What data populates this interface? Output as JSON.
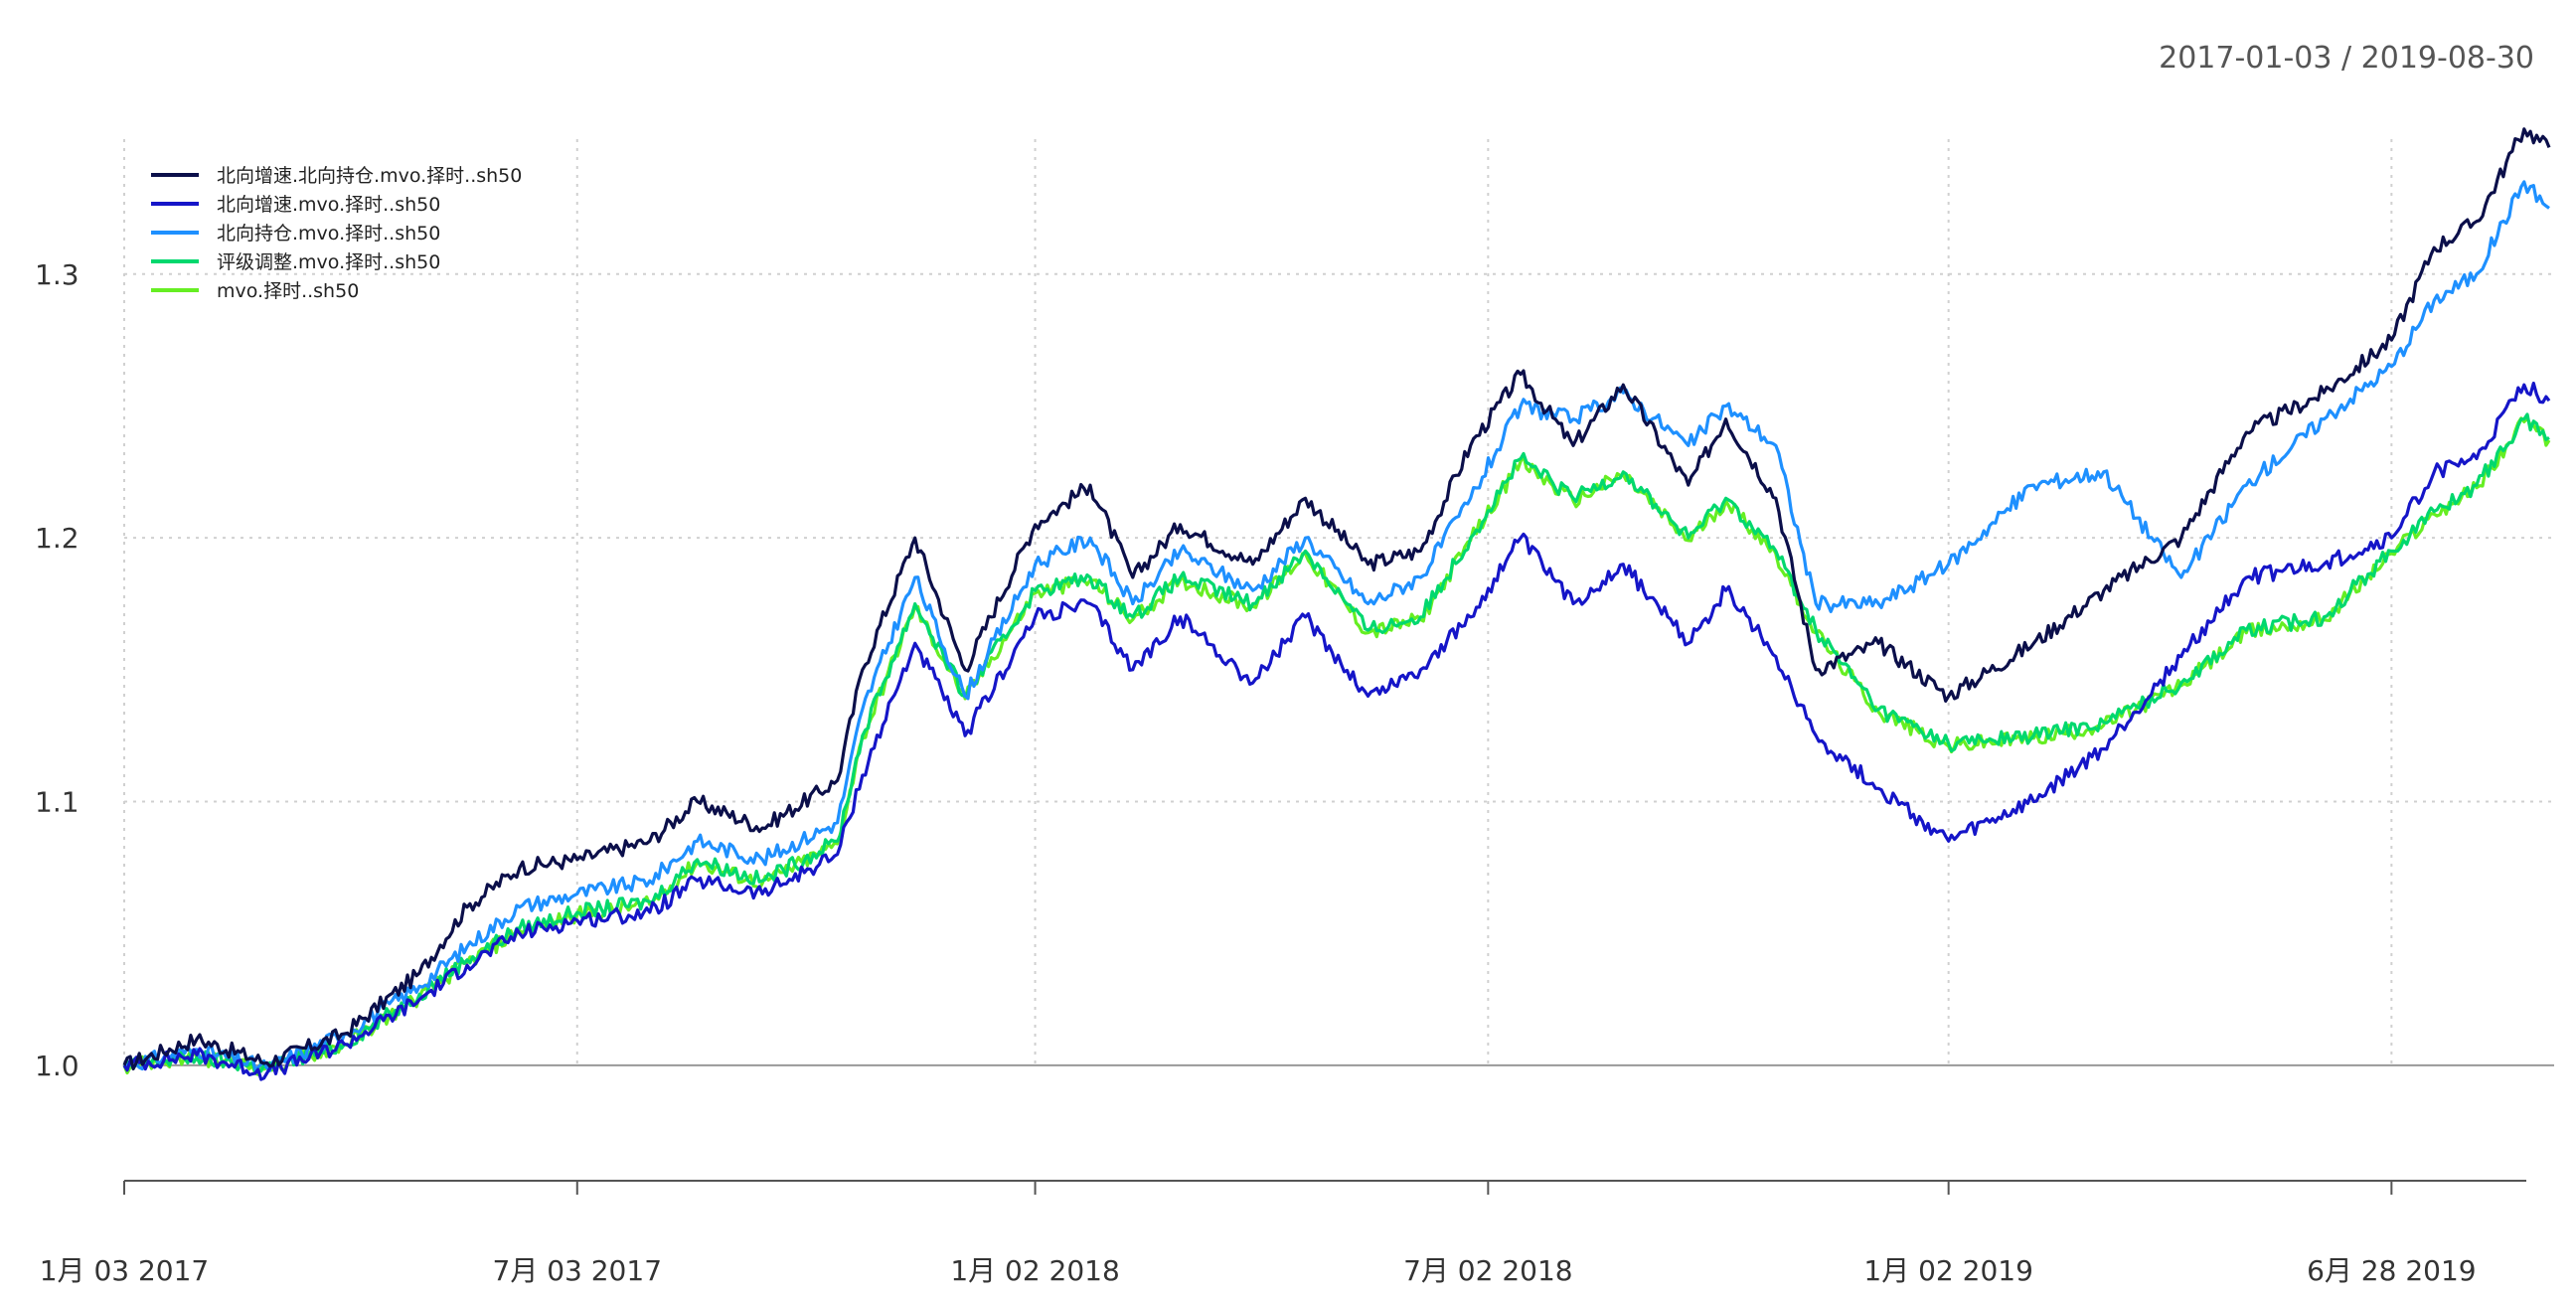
{
  "chart_data": {
    "type": "line",
    "title": "",
    "xlabel": "",
    "ylabel": "",
    "date_range": "2017-01-03 / 2019-08-30",
    "x_start": "2017-01-03",
    "x_end": "2019-08-30",
    "ylim": [
      0.98,
      1.37
    ],
    "grid": true,
    "legend_position": "top-left",
    "x_ticks": [
      {
        "date": "2017-01-03",
        "label": "1月 03 2017"
      },
      {
        "date": "2017-07-03",
        "label": "7月 03 2017"
      },
      {
        "date": "2018-01-02",
        "label": "1月 02 2018"
      },
      {
        "date": "2018-07-02",
        "label": "7月 02 2018"
      },
      {
        "date": "2019-01-02",
        "label": "1月 02 2019"
      },
      {
        "date": "2019-06-28",
        "label": "6月 28 2019"
      }
    ],
    "y_ticks": [
      {
        "value": 1.0,
        "label": "1.0"
      },
      {
        "value": 1.1,
        "label": "1.1"
      },
      {
        "value": 1.2,
        "label": "1.2"
      },
      {
        "value": 1.3,
        "label": "1.3"
      }
    ],
    "series": [
      {
        "name": "北向增速.北向持仓.mvo.择时..sh50",
        "color": "#0b0f4a",
        "points": [
          [
            "2017-01-03",
            1.0
          ],
          [
            "2017-02-01",
            1.01
          ],
          [
            "2017-03-01",
            1.001
          ],
          [
            "2017-04-01",
            1.012
          ],
          [
            "2017-05-01",
            1.035
          ],
          [
            "2017-05-20",
            1.06
          ],
          [
            "2017-06-10",
            1.075
          ],
          [
            "2017-07-03",
            1.078
          ],
          [
            "2017-08-01",
            1.085
          ],
          [
            "2017-08-20",
            1.1
          ],
          [
            "2017-09-15",
            1.09
          ],
          [
            "2017-10-15",
            1.108
          ],
          [
            "2017-10-25",
            1.15
          ],
          [
            "2017-11-15",
            1.2
          ],
          [
            "2017-12-05",
            1.15
          ],
          [
            "2018-01-02",
            1.205
          ],
          [
            "2018-01-24",
            1.22
          ],
          [
            "2018-02-10",
            1.185
          ],
          [
            "2018-03-01",
            1.205
          ],
          [
            "2018-03-30",
            1.19
          ],
          [
            "2018-04-20",
            1.215
          ],
          [
            "2018-05-15",
            1.19
          ],
          [
            "2018-06-05",
            1.195
          ],
          [
            "2018-06-25",
            1.235
          ],
          [
            "2018-07-15",
            1.262
          ],
          [
            "2018-08-05",
            1.235
          ],
          [
            "2018-08-25",
            1.258
          ],
          [
            "2018-09-20",
            1.22
          ],
          [
            "2018-10-05",
            1.245
          ],
          [
            "2018-10-25",
            1.215
          ],
          [
            "2018-11-10",
            1.15
          ],
          [
            "2018-12-05",
            1.16
          ],
          [
            "2019-01-02",
            1.14
          ],
          [
            "2019-02-05",
            1.16
          ],
          [
            "2019-03-05",
            1.18
          ],
          [
            "2019-04-05",
            1.2
          ],
          [
            "2019-05-01",
            1.24
          ],
          [
            "2019-06-01",
            1.255
          ],
          [
            "2019-06-28",
            1.275
          ],
          [
            "2019-07-15",
            1.31
          ],
          [
            "2019-08-01",
            1.32
          ],
          [
            "2019-08-20",
            1.355
          ],
          [
            "2019-08-30",
            1.348
          ]
        ]
      },
      {
        "name": "北向增速.mvo.择时..sh50",
        "color": "#1515c8",
        "points": [
          [
            "2017-01-03",
            1.0
          ],
          [
            "2017-02-01",
            1.004
          ],
          [
            "2017-03-01",
            0.997
          ],
          [
            "2017-04-01",
            1.008
          ],
          [
            "2017-05-01",
            1.025
          ],
          [
            "2017-05-20",
            1.038
          ],
          [
            "2017-06-10",
            1.05
          ],
          [
            "2017-07-03",
            1.055
          ],
          [
            "2017-08-01",
            1.058
          ],
          [
            "2017-08-20",
            1.07
          ],
          [
            "2017-09-15",
            1.065
          ],
          [
            "2017-10-15",
            1.08
          ],
          [
            "2017-10-25",
            1.11
          ],
          [
            "2017-11-15",
            1.16
          ],
          [
            "2017-12-05",
            1.125
          ],
          [
            "2018-01-02",
            1.17
          ],
          [
            "2018-01-24",
            1.175
          ],
          [
            "2018-02-10",
            1.15
          ],
          [
            "2018-03-01",
            1.17
          ],
          [
            "2018-03-30",
            1.145
          ],
          [
            "2018-04-20",
            1.17
          ],
          [
            "2018-05-15",
            1.14
          ],
          [
            "2018-06-05",
            1.15
          ],
          [
            "2018-06-25",
            1.17
          ],
          [
            "2018-07-15",
            1.2
          ],
          [
            "2018-08-05",
            1.175
          ],
          [
            "2018-08-25",
            1.19
          ],
          [
            "2018-09-20",
            1.16
          ],
          [
            "2018-10-05",
            1.18
          ],
          [
            "2018-10-25",
            1.155
          ],
          [
            "2018-11-10",
            1.125
          ],
          [
            "2018-12-05",
            1.105
          ],
          [
            "2019-01-02",
            1.085
          ],
          [
            "2019-02-05",
            1.1
          ],
          [
            "2019-03-05",
            1.12
          ],
          [
            "2019-04-05",
            1.155
          ],
          [
            "2019-05-01",
            1.185
          ],
          [
            "2019-06-01",
            1.19
          ],
          [
            "2019-06-28",
            1.2
          ],
          [
            "2019-07-15",
            1.225
          ],
          [
            "2019-08-01",
            1.23
          ],
          [
            "2019-08-20",
            1.258
          ],
          [
            "2019-08-30",
            1.252
          ]
        ]
      },
      {
        "name": "北向持仓.mvo.择时..sh50",
        "color": "#1e90ff",
        "points": [
          [
            "2017-01-03",
            1.0
          ],
          [
            "2017-02-01",
            1.006
          ],
          [
            "2017-03-01",
            0.999
          ],
          [
            "2017-04-01",
            1.012
          ],
          [
            "2017-05-01",
            1.03
          ],
          [
            "2017-05-20",
            1.045
          ],
          [
            "2017-06-10",
            1.06
          ],
          [
            "2017-07-03",
            1.065
          ],
          [
            "2017-08-01",
            1.07
          ],
          [
            "2017-08-20",
            1.085
          ],
          [
            "2017-09-15",
            1.078
          ],
          [
            "2017-10-15",
            1.092
          ],
          [
            "2017-10-25",
            1.135
          ],
          [
            "2017-11-15",
            1.185
          ],
          [
            "2017-12-05",
            1.14
          ],
          [
            "2018-01-02",
            1.19
          ],
          [
            "2018-01-24",
            1.2
          ],
          [
            "2018-02-10",
            1.175
          ],
          [
            "2018-03-01",
            1.195
          ],
          [
            "2018-03-30",
            1.18
          ],
          [
            "2018-04-20",
            1.2
          ],
          [
            "2018-05-15",
            1.175
          ],
          [
            "2018-06-05",
            1.185
          ],
          [
            "2018-06-25",
            1.215
          ],
          [
            "2018-07-15",
            1.25
          ],
          [
            "2018-08-05",
            1.245
          ],
          [
            "2018-08-25",
            1.255
          ],
          [
            "2018-09-20",
            1.235
          ],
          [
            "2018-10-05",
            1.25
          ],
          [
            "2018-10-25",
            1.235
          ],
          [
            "2018-11-10",
            1.175
          ],
          [
            "2018-12-05",
            1.175
          ],
          [
            "2019-01-02",
            1.19
          ],
          [
            "2019-02-05",
            1.22
          ],
          [
            "2019-03-05",
            1.225
          ],
          [
            "2019-04-05",
            1.185
          ],
          [
            "2019-05-01",
            1.22
          ],
          [
            "2019-06-01",
            1.245
          ],
          [
            "2019-06-28",
            1.265
          ],
          [
            "2019-07-15",
            1.29
          ],
          [
            "2019-08-01",
            1.3
          ],
          [
            "2019-08-20",
            1.335
          ],
          [
            "2019-08-30",
            1.325
          ]
        ]
      },
      {
        "name": "评级调整.mvo.择时..sh50",
        "color": "#00d86e",
        "points": [
          [
            "2017-01-03",
            1.0
          ],
          [
            "2017-02-01",
            1.003
          ],
          [
            "2017-03-01",
            0.999
          ],
          [
            "2017-04-01",
            1.008
          ],
          [
            "2017-05-01",
            1.027
          ],
          [
            "2017-05-20",
            1.04
          ],
          [
            "2017-06-10",
            1.052
          ],
          [
            "2017-07-03",
            1.058
          ],
          [
            "2017-08-01",
            1.062
          ],
          [
            "2017-08-20",
            1.078
          ],
          [
            "2017-09-15",
            1.07
          ],
          [
            "2017-10-15",
            1.085
          ],
          [
            "2017-10-25",
            1.125
          ],
          [
            "2017-11-15",
            1.175
          ],
          [
            "2017-12-05",
            1.14
          ],
          [
            "2018-01-02",
            1.18
          ],
          [
            "2018-01-24",
            1.185
          ],
          [
            "2018-02-10",
            1.17
          ],
          [
            "2018-03-01",
            1.185
          ],
          [
            "2018-03-30",
            1.175
          ],
          [
            "2018-04-20",
            1.195
          ],
          [
            "2018-05-15",
            1.165
          ],
          [
            "2018-06-05",
            1.17
          ],
          [
            "2018-06-25",
            1.2
          ],
          [
            "2018-07-15",
            1.23
          ],
          [
            "2018-08-05",
            1.215
          ],
          [
            "2018-08-25",
            1.225
          ],
          [
            "2018-09-20",
            1.2
          ],
          [
            "2018-10-05",
            1.215
          ],
          [
            "2018-10-25",
            1.195
          ],
          [
            "2018-11-10",
            1.165
          ],
          [
            "2018-12-05",
            1.135
          ],
          [
            "2019-01-02",
            1.122
          ],
          [
            "2019-02-05",
            1.125
          ],
          [
            "2019-03-05",
            1.13
          ],
          [
            "2019-04-05",
            1.145
          ],
          [
            "2019-05-01",
            1.165
          ],
          [
            "2019-06-01",
            1.17
          ],
          [
            "2019-06-28",
            1.195
          ],
          [
            "2019-07-15",
            1.21
          ],
          [
            "2019-08-01",
            1.22
          ],
          [
            "2019-08-20",
            1.245
          ],
          [
            "2019-08-30",
            1.238
          ]
        ]
      },
      {
        "name": "mvo.择时..sh50",
        "color": "#66ee22",
        "points": [
          [
            "2017-01-03",
            1.0
          ],
          [
            "2017-02-01",
            1.003
          ],
          [
            "2017-03-01",
            0.999
          ],
          [
            "2017-04-01",
            1.008
          ],
          [
            "2017-05-01",
            1.026
          ],
          [
            "2017-05-20",
            1.039
          ],
          [
            "2017-06-10",
            1.051
          ],
          [
            "2017-07-03",
            1.057
          ],
          [
            "2017-08-01",
            1.061
          ],
          [
            "2017-08-20",
            1.077
          ],
          [
            "2017-09-15",
            1.069
          ],
          [
            "2017-10-15",
            1.084
          ],
          [
            "2017-10-25",
            1.124
          ],
          [
            "2017-11-15",
            1.174
          ],
          [
            "2017-12-05",
            1.139
          ],
          [
            "2018-01-02",
            1.179
          ],
          [
            "2018-01-24",
            1.184
          ],
          [
            "2018-02-10",
            1.169
          ],
          [
            "2018-03-01",
            1.184
          ],
          [
            "2018-03-30",
            1.174
          ],
          [
            "2018-04-20",
            1.194
          ],
          [
            "2018-05-15",
            1.164
          ],
          [
            "2018-06-05",
            1.169
          ],
          [
            "2018-06-25",
            1.199
          ],
          [
            "2018-07-15",
            1.229
          ],
          [
            "2018-08-05",
            1.214
          ],
          [
            "2018-08-25",
            1.224
          ],
          [
            "2018-09-20",
            1.199
          ],
          [
            "2018-10-05",
            1.214
          ],
          [
            "2018-10-25",
            1.194
          ],
          [
            "2018-11-10",
            1.164
          ],
          [
            "2018-12-05",
            1.134
          ],
          [
            "2019-01-02",
            1.121
          ],
          [
            "2019-02-05",
            1.124
          ],
          [
            "2019-03-05",
            1.129
          ],
          [
            "2019-04-05",
            1.144
          ],
          [
            "2019-05-01",
            1.164
          ],
          [
            "2019-06-01",
            1.169
          ],
          [
            "2019-06-28",
            1.194
          ],
          [
            "2019-07-15",
            1.209
          ],
          [
            "2019-08-01",
            1.219
          ],
          [
            "2019-08-20",
            1.244
          ],
          [
            "2019-08-30",
            1.237
          ]
        ]
      }
    ]
  }
}
